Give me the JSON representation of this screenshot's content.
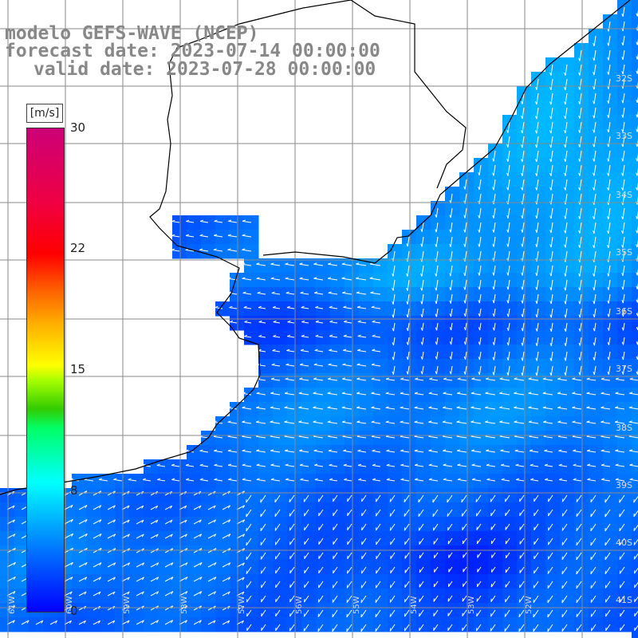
{
  "title": {
    "line1": "modelo GEFS-WAVE (NCEP)",
    "line2": "forecast date: 2023-07-14 00:00:00",
    "line3": "valid date: 2023-07-28 00:00:00"
  },
  "colorbar": {
    "unit": "[m/s]",
    "ticks": [
      "30",
      "22",
      "15",
      "8",
      "0"
    ],
    "colors": [
      "#0000ff",
      "#0077ff",
      "#00ffff",
      "#00ff66",
      "#aaff00",
      "#ffff00",
      "#ff6600",
      "#ff0000",
      "#cc0077"
    ]
  },
  "lat_labels": [
    "32S",
    "33S",
    "34S",
    "35S",
    "36S",
    "37S",
    "38S",
    "39S",
    "40S",
    "41S"
  ],
  "lon_labels": [
    "61W",
    "60W",
    "59W",
    "58W",
    "57W",
    "56W",
    "55W",
    "54W",
    "53W",
    "52W"
  ],
  "colors": {
    "land": "#ffffff",
    "grid": "#8a8a8a",
    "coast": "#000000",
    "arrow": "#ffffff",
    "title": "#888888"
  }
}
